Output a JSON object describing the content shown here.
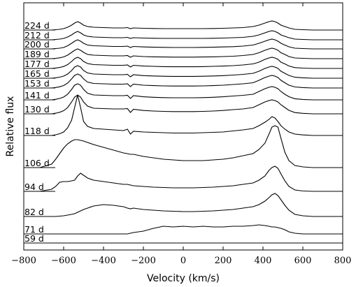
{
  "chart_data": {
    "type": "line",
    "xlabel": "Velocity (km/s)",
    "ylabel": "Relative flux",
    "xlim": [
      -800,
      800
    ],
    "xticks": [
      "−800",
      "−600",
      "−400",
      "−200",
      "0",
      "200",
      "400",
      "600",
      "800"
    ],
    "xtick_values": [
      -800,
      -600,
      -400,
      -200,
      0,
      200,
      400,
      600,
      800
    ],
    "x": [
      -720,
      -660,
      -640,
      -620,
      -600,
      -580,
      -560,
      -545,
      -530,
      -515,
      -500,
      -480,
      -450,
      -400,
      -350,
      -300,
      -280,
      -265,
      -250,
      -200,
      -150,
      -100,
      -50,
      0,
      50,
      100,
      150,
      200,
      250,
      300,
      350,
      380,
      410,
      430,
      445,
      460,
      475,
      490,
      510,
      530,
      560,
      600,
      650,
      700
    ],
    "series": [
      {
        "name": "224 d",
        "values": [
          0,
          0,
          0.005,
          0.01,
          0.02,
          0.04,
          0.07,
          0.1,
          0.12,
          0.1,
          0.07,
          0.05,
          0.04,
          0.035,
          0.03,
          0.03,
          0.035,
          0.02,
          0.03,
          0.025,
          0.022,
          0.02,
          0.02,
          0.02,
          0.02,
          0.02,
          0.022,
          0.025,
          0.03,
          0.035,
          0.05,
          0.07,
          0.1,
          0.12,
          0.13,
          0.12,
          0.1,
          0.07,
          0.05,
          0.03,
          0.01,
          0.005,
          0,
          0
        ]
      },
      {
        "name": "212 d",
        "values": [
          0,
          0,
          0.005,
          0.01,
          0.02,
          0.04,
          0.07,
          0.1,
          0.12,
          0.1,
          0.07,
          0.05,
          0.04,
          0.035,
          0.03,
          0.03,
          0.035,
          0.02,
          0.03,
          0.025,
          0.022,
          0.02,
          0.02,
          0.02,
          0.02,
          0.02,
          0.022,
          0.025,
          0.03,
          0.035,
          0.05,
          0.07,
          0.1,
          0.12,
          0.13,
          0.12,
          0.1,
          0.07,
          0.05,
          0.03,
          0.01,
          0.005,
          0,
          0
        ]
      },
      {
        "name": "200 d",
        "values": [
          0,
          0,
          0.005,
          0.01,
          0.02,
          0.045,
          0.08,
          0.11,
          0.13,
          0.11,
          0.08,
          0.055,
          0.045,
          0.04,
          0.035,
          0.035,
          0.04,
          0.02,
          0.035,
          0.028,
          0.024,
          0.022,
          0.02,
          0.02,
          0.02,
          0.022,
          0.024,
          0.028,
          0.032,
          0.04,
          0.055,
          0.08,
          0.11,
          0.13,
          0.14,
          0.13,
          0.11,
          0.08,
          0.055,
          0.03,
          0.01,
          0.005,
          0,
          0
        ]
      },
      {
        "name": "189 d",
        "values": [
          0,
          0,
          0.005,
          0.012,
          0.025,
          0.05,
          0.09,
          0.12,
          0.14,
          0.12,
          0.09,
          0.06,
          0.05,
          0.045,
          0.04,
          0.04,
          0.045,
          0.02,
          0.04,
          0.03,
          0.026,
          0.024,
          0.022,
          0.022,
          0.022,
          0.024,
          0.026,
          0.03,
          0.035,
          0.045,
          0.06,
          0.085,
          0.12,
          0.14,
          0.15,
          0.14,
          0.12,
          0.085,
          0.06,
          0.03,
          0.01,
          0.005,
          0,
          0
        ]
      },
      {
        "name": "177 d",
        "values": [
          0,
          0,
          0.006,
          0.014,
          0.028,
          0.055,
          0.1,
          0.14,
          0.16,
          0.14,
          0.1,
          0.07,
          0.055,
          0.05,
          0.045,
          0.045,
          0.05,
          0.02,
          0.045,
          0.034,
          0.03,
          0.026,
          0.024,
          0.024,
          0.024,
          0.026,
          0.03,
          0.034,
          0.04,
          0.05,
          0.065,
          0.09,
          0.13,
          0.15,
          0.16,
          0.15,
          0.13,
          0.09,
          0.065,
          0.035,
          0.012,
          0.005,
          0,
          0
        ]
      },
      {
        "name": "165 d",
        "values": [
          0,
          0,
          0.006,
          0.015,
          0.03,
          0.06,
          0.11,
          0.16,
          0.18,
          0.16,
          0.11,
          0.075,
          0.06,
          0.055,
          0.05,
          0.05,
          0.055,
          0.02,
          0.05,
          0.037,
          0.032,
          0.028,
          0.026,
          0.026,
          0.026,
          0.028,
          0.032,
          0.037,
          0.045,
          0.055,
          0.07,
          0.1,
          0.14,
          0.16,
          0.17,
          0.16,
          0.14,
          0.1,
          0.07,
          0.04,
          0.014,
          0.006,
          0,
          0
        ]
      },
      {
        "name": "153 d",
        "values": [
          0,
          0,
          0.007,
          0.017,
          0.035,
          0.07,
          0.13,
          0.18,
          0.2,
          0.18,
          0.13,
          0.085,
          0.065,
          0.06,
          0.055,
          0.055,
          0.06,
          0.02,
          0.055,
          0.04,
          0.034,
          0.03,
          0.028,
          0.028,
          0.028,
          0.03,
          0.034,
          0.04,
          0.05,
          0.06,
          0.075,
          0.11,
          0.15,
          0.17,
          0.18,
          0.17,
          0.15,
          0.11,
          0.075,
          0.04,
          0.015,
          0.006,
          0,
          0
        ]
      },
      {
        "name": "141 d",
        "values": [
          0,
          0,
          0.008,
          0.02,
          0.04,
          0.08,
          0.15,
          0.21,
          0.23,
          0.21,
          0.15,
          0.095,
          0.07,
          0.065,
          0.06,
          0.06,
          0.065,
          0.02,
          0.06,
          0.044,
          0.037,
          0.032,
          0.03,
          0.03,
          0.03,
          0.032,
          0.037,
          0.044,
          0.055,
          0.065,
          0.08,
          0.12,
          0.16,
          0.18,
          0.19,
          0.18,
          0.16,
          0.12,
          0.08,
          0.045,
          0.016,
          0.006,
          0,
          0
        ]
      },
      {
        "name": "130 d",
        "values": [
          0,
          0,
          0.009,
          0.022,
          0.045,
          0.09,
          0.17,
          0.24,
          0.27,
          0.24,
          0.17,
          0.11,
          0.08,
          0.075,
          0.07,
          0.07,
          0.075,
          0.02,
          0.065,
          0.048,
          0.04,
          0.035,
          0.032,
          0.032,
          0.032,
          0.035,
          0.04,
          0.048,
          0.06,
          0.07,
          0.09,
          0.13,
          0.17,
          0.19,
          0.2,
          0.19,
          0.17,
          0.13,
          0.09,
          0.05,
          0.018,
          0.007,
          0,
          0
        ]
      },
      {
        "name": "118 d",
        "values": [
          0,
          0,
          0.01,
          0.025,
          0.05,
          0.11,
          0.22,
          0.4,
          0.58,
          0.4,
          0.2,
          0.13,
          0.1,
          0.09,
          0.08,
          0.07,
          0.09,
          0.02,
          0.06,
          0.05,
          0.045,
          0.04,
          0.035,
          0.035,
          0.035,
          0.04,
          0.045,
          0.05,
          0.065,
          0.08,
          0.1,
          0.14,
          0.19,
          0.23,
          0.27,
          0.25,
          0.2,
          0.14,
          0.09,
          0.05,
          0.02,
          0.008,
          0,
          0
        ]
      },
      {
        "name": "106 d",
        "values": [
          0,
          0.05,
          0.12,
          0.2,
          0.28,
          0.34,
          0.38,
          0.4,
          0.4,
          0.39,
          0.38,
          0.36,
          0.33,
          0.29,
          0.25,
          0.21,
          0.2,
          0.19,
          0.19,
          0.16,
          0.14,
          0.12,
          0.11,
          0.1,
          0.1,
          0.1,
          0.11,
          0.12,
          0.14,
          0.17,
          0.2,
          0.26,
          0.35,
          0.48,
          0.58,
          0.6,
          0.58,
          0.42,
          0.22,
          0.1,
          0.03,
          0.01,
          0,
          0
        ]
      },
      {
        "name": "94 d",
        "values": [
          0,
          0.03,
          0.07,
          0.13,
          0.14,
          0.14,
          0.15,
          0.16,
          0.22,
          0.26,
          0.23,
          0.19,
          0.16,
          0.14,
          0.12,
          0.1,
          0.1,
          0.09,
          0.08,
          0.07,
          0.06,
          0.055,
          0.05,
          0.05,
          0.05,
          0.055,
          0.06,
          0.07,
          0.08,
          0.1,
          0.12,
          0.16,
          0.22,
          0.3,
          0.34,
          0.36,
          0.33,
          0.25,
          0.15,
          0.07,
          0.02,
          0.005,
          0,
          0
        ]
      },
      {
        "name": "82 d",
        "values": [
          0,
          0,
          0,
          0.005,
          0.01,
          0.02,
          0.03,
          0.04,
          0.06,
          0.08,
          0.1,
          0.12,
          0.15,
          0.17,
          0.16,
          0.14,
          0.12,
          0.11,
          0.12,
          0.1,
          0.09,
          0.08,
          0.075,
          0.07,
          0.07,
          0.075,
          0.08,
          0.09,
          0.1,
          0.12,
          0.14,
          0.17,
          0.22,
          0.27,
          0.31,
          0.33,
          0.3,
          0.24,
          0.16,
          0.09,
          0.03,
          0.01,
          0,
          0
        ]
      },
      {
        "name": "71 d",
        "values": [
          0,
          0,
          0,
          0,
          0,
          0,
          0,
          0,
          0,
          0,
          0,
          0,
          0,
          0,
          0,
          0,
          0,
          0.01,
          0.02,
          0.04,
          0.08,
          0.11,
          0.1,
          0.11,
          0.1,
          0.11,
          0.1,
          0.1,
          0.11,
          0.11,
          0.12,
          0.13,
          0.12,
          0.11,
          0.1,
          0.1,
          0.09,
          0.08,
          0.06,
          0.03,
          0.01,
          0,
          0,
          0
        ]
      },
      {
        "name": "59 d",
        "values": [
          0,
          0,
          0,
          0,
          0,
          0,
          0,
          0,
          0,
          0,
          0,
          0,
          0,
          0,
          0,
          0,
          0,
          0,
          0,
          0,
          0,
          0,
          0,
          0,
          0,
          0,
          0,
          0,
          0,
          0,
          0,
          0,
          0,
          0,
          0,
          0,
          0,
          0,
          0,
          0,
          0,
          0,
          0,
          0
        ]
      }
    ],
    "series_baselines_note": "",
    "grid": false,
    "legend": "none"
  }
}
